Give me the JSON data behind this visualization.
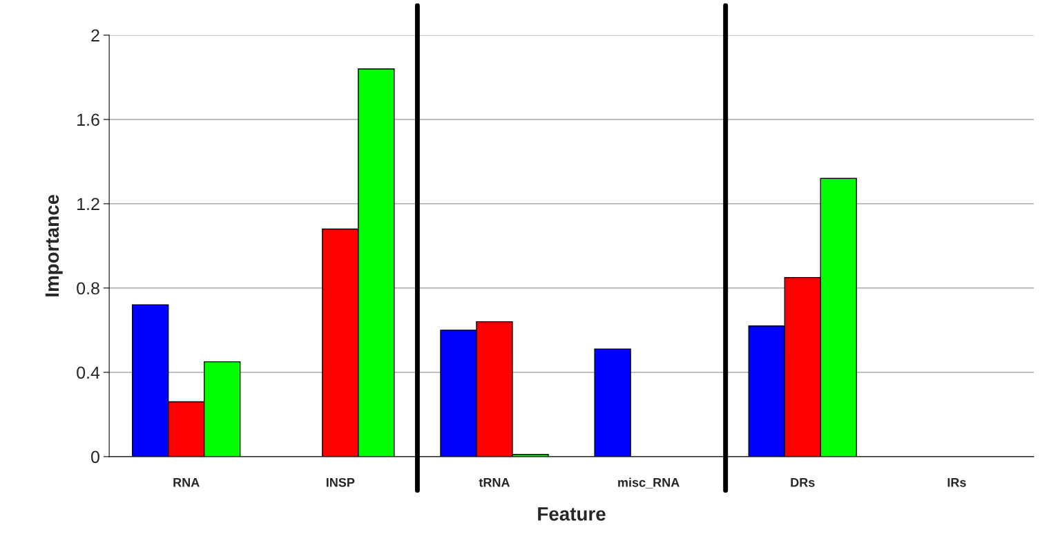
{
  "chart_data": {
    "type": "bar",
    "xlabel": "Feature",
    "ylabel": "Importance",
    "categories": [
      "RNA",
      "INSP",
      "tRNA",
      "misc_RNA",
      "DRs",
      "IRs"
    ],
    "series": [
      {
        "color": "#0000ff",
        "values": [
          0.72,
          null,
          0.6,
          0.51,
          0.62,
          null
        ]
      },
      {
        "color": "#ff0000",
        "values": [
          0.26,
          1.08,
          0.64,
          null,
          0.85,
          null
        ]
      },
      {
        "color": "#00ff00",
        "values": [
          0.45,
          1.84,
          0.01,
          null,
          1.32,
          null
        ]
      }
    ],
    "ylim": [
      0,
      2
    ],
    "yticks": [
      0,
      0.4,
      0.8,
      1.2,
      1.6,
      2
    ],
    "grid": "y",
    "legend": false
  }
}
